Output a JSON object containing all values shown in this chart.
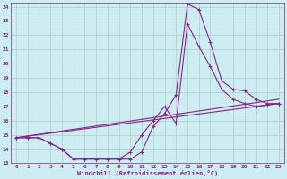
{
  "xlabel": "Windchill (Refroidissement éolien,°C)",
  "background_color": "#cceef0",
  "grid_color": "#aacccc",
  "line_color": "#882288",
  "x_min": 0,
  "x_max": 23,
  "y_min": 13,
  "y_max": 24,
  "curve1_x": [
    0,
    1,
    2,
    3,
    4,
    5,
    6,
    7,
    8,
    9,
    10,
    11,
    12,
    13,
    14,
    15,
    16,
    17,
    18,
    19,
    20,
    21,
    22,
    23
  ],
  "curve1_y": [
    14.8,
    14.8,
    14.8,
    14.4,
    14.0,
    13.3,
    13.3,
    13.3,
    13.3,
    13.3,
    13.3,
    13.8,
    15.6,
    16.5,
    17.8,
    24.2,
    23.8,
    21.5,
    18.8,
    18.2,
    18.1,
    17.5,
    17.2,
    17.2
  ],
  "curve2_x": [
    0,
    1,
    2,
    3,
    4,
    5,
    6,
    7,
    8,
    9,
    10,
    11,
    12,
    13,
    14,
    15,
    16,
    17,
    18,
    19,
    20,
    21,
    22,
    23
  ],
  "curve2_y": [
    14.8,
    14.8,
    14.8,
    14.4,
    14.0,
    13.3,
    13.3,
    13.3,
    13.3,
    13.3,
    13.8,
    15.0,
    16.0,
    17.0,
    15.8,
    22.8,
    21.2,
    19.8,
    18.2,
    17.5,
    17.2,
    17.0,
    17.1,
    17.2
  ],
  "line1_x": [
    0,
    23
  ],
  "line1_y": [
    14.8,
    17.5
  ],
  "line2_x": [
    0,
    23
  ],
  "line2_y": [
    14.8,
    17.2
  ]
}
